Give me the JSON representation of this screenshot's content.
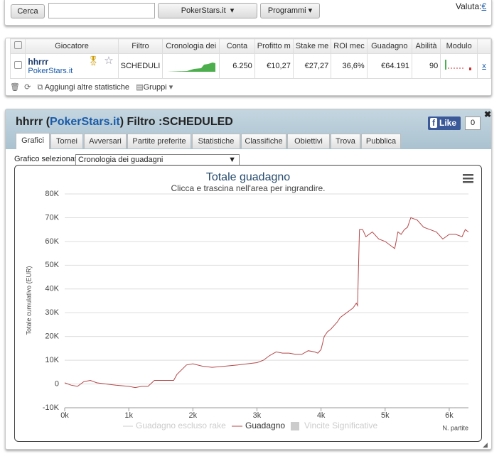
{
  "toolbar": {
    "search": "Cerca",
    "site": "PokerStars.it",
    "programs": "Programmi",
    "currency_label": "Valuta:",
    "currency": "€"
  },
  "table": {
    "headers": [
      "Giocatore",
      "Filtro",
      "Cronologia dei",
      "Conta",
      "Profitto m",
      "Stake me",
      "ROI mec",
      "Guadagno",
      "Abilità",
      "Modulo"
    ],
    "row": {
      "player": "hhrrr",
      "site": "PokerStars.it",
      "filter": "SCHEDULI",
      "count": "6.250",
      "profit": "€10,27",
      "stake": "€27,27",
      "roi": "36,6%",
      "winnings": "€64.191",
      "ability": "90",
      "remove": "x"
    },
    "add_stats": "Aggiungi altre statistiche",
    "groups": "Gruppi"
  },
  "panel": {
    "player": "hhrrr",
    "open": "(",
    "site": "PokerStars.it",
    "rest": ") Filtro :SCHEDULED",
    "like": "Like",
    "like_count": "0",
    "tabs": [
      "Grafici",
      "Tornei",
      "Avversari",
      "Partite preferite",
      "Statistiche",
      "Classifiche",
      "Obiettivi",
      "Trova",
      "Pubblica"
    ],
    "selector_label": "Grafico selezionato",
    "selector_value": "Cronologia dei guadagni"
  },
  "chart_data": {
    "type": "line",
    "title": "Totale guadagno",
    "subtitle": "Clicca e trascina nell'area per ingrandire.",
    "y_label": "Totale cumulativo (EUR)",
    "x_label": "N. partite",
    "x": [
      0,
      100,
      200,
      300,
      400,
      500,
      650,
      800,
      1000,
      1100,
      1200,
      1300,
      1400,
      1550,
      1700,
      1750,
      1900,
      2000,
      2150,
      2300,
      2500,
      2700,
      2850,
      3000,
      3100,
      3200,
      3300,
      3400,
      3500,
      3600,
      3700,
      3800,
      3900,
      3950,
      4000,
      4050,
      4100,
      4150,
      4250,
      4300,
      4400,
      4450,
      4500,
      4550,
      4570,
      4590,
      4600,
      4650,
      4700,
      4800,
      4900,
      5000,
      5100,
      5150,
      5200,
      5250,
      5300,
      5350,
      5400,
      5500,
      5600,
      5700,
      5800,
      5900,
      6000,
      6100,
      6200,
      6250,
      6300
    ],
    "series": [
      {
        "name": "Guadagno",
        "color": "#b5494b",
        "values": [
          500,
          -500,
          -1000,
          1000,
          1500,
          500,
          0,
          -500,
          -1000,
          -1500,
          -1000,
          -1000,
          1500,
          1500,
          1500,
          4000,
          8000,
          8500,
          7500,
          7000,
          7500,
          8000,
          8500,
          9000,
          10000,
          12000,
          13500,
          13000,
          13000,
          12500,
          12500,
          14000,
          13500,
          13000,
          14500,
          20000,
          22000,
          23000,
          26000,
          28000,
          30000,
          31000,
          32000,
          34000,
          33000,
          55000,
          65000,
          65000,
          62000,
          64000,
          61000,
          60000,
          58000,
          57000,
          64000,
          63000,
          65000,
          66000,
          70000,
          69000,
          66000,
          65000,
          64000,
          61000,
          63000,
          63000,
          62000,
          65000,
          64000
        ]
      }
    ],
    "legend_hidden": [
      "Guadagno escluso rake",
      "Vincite Significative"
    ],
    "xlim": [
      0,
      6300
    ],
    "xticks": [
      {
        "value": 0,
        "label": "0k"
      },
      {
        "value": 1000,
        "label": "1k"
      },
      {
        "value": 2000,
        "label": "2k"
      },
      {
        "value": 3000,
        "label": "3k"
      },
      {
        "value": 4000,
        "label": "4k"
      },
      {
        "value": 5000,
        "label": "5k"
      },
      {
        "value": 6000,
        "label": "6k"
      }
    ],
    "ylim": [
      -10000,
      80000
    ],
    "yticks": [
      {
        "value": -10000,
        "label": "-10K"
      },
      0,
      {
        "value": 10000,
        "label": "10K"
      },
      {
        "value": 20000,
        "label": "20K"
      },
      {
        "value": 30000,
        "label": "30K"
      },
      {
        "value": 40000,
        "label": "40K"
      },
      {
        "value": 50000,
        "label": "50K"
      },
      {
        "value": 60000,
        "label": "60K"
      },
      {
        "value": 70000,
        "label": "70K"
      },
      {
        "value": 80000,
        "label": "80K"
      }
    ],
    "grid": true
  }
}
